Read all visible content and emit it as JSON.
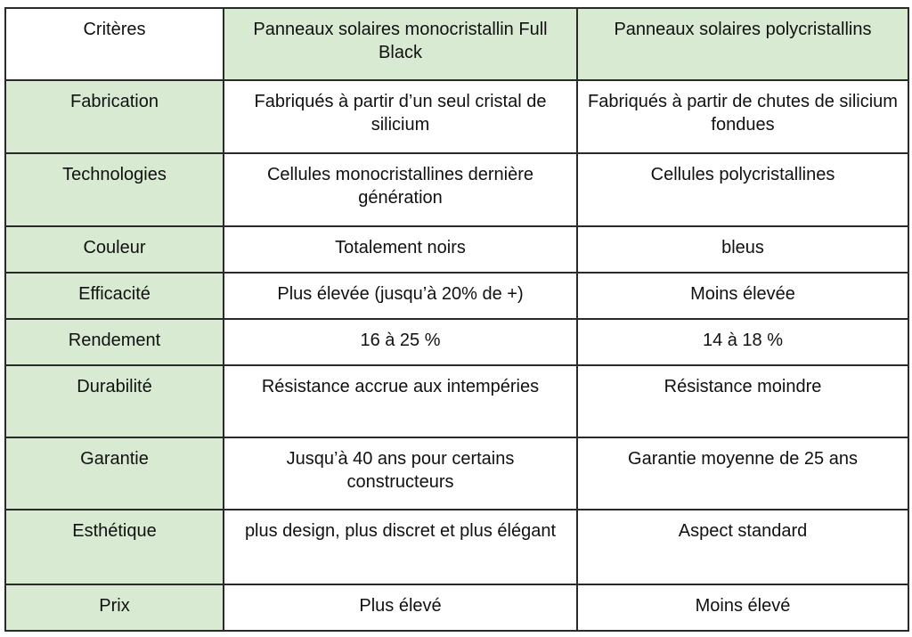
{
  "colors": {
    "header_bg": "#d9ead3",
    "border": "#2a2a2a"
  },
  "header": [
    "Critères",
    "Panneaux solaires monocristallin Full Black",
    "Panneaux solaires polycristallins"
  ],
  "rows": [
    [
      "Fabrication",
      "Fabriqués à partir d’un seul cristal de silicium",
      "Fabriqués à partir de chutes de silicium fondues"
    ],
    [
      "Technologies",
      "Cellules monocristallines dernière génération",
      "Cellules polycristallines"
    ],
    [
      "Couleur",
      "Totalement noirs",
      "bleus"
    ],
    [
      "Efficacité",
      "Plus élevée (jusqu’à 20% de +)",
      "Moins élevée"
    ],
    [
      "Rendement",
      "16 à 25 %",
      "14 à 18 %"
    ],
    [
      "Durabilité",
      "Résistance accrue aux intempéries",
      "Résistance moindre"
    ],
    [
      "Garantie",
      "Jusqu’à 40 ans pour certains constructeurs",
      "Garantie moyenne de 25 ans"
    ],
    [
      "Esthétique",
      "plus design, plus discret et plus élégant",
      "Aspect standard"
    ],
    [
      "Prix",
      "Plus élevé",
      "Moins élevé"
    ]
  ]
}
